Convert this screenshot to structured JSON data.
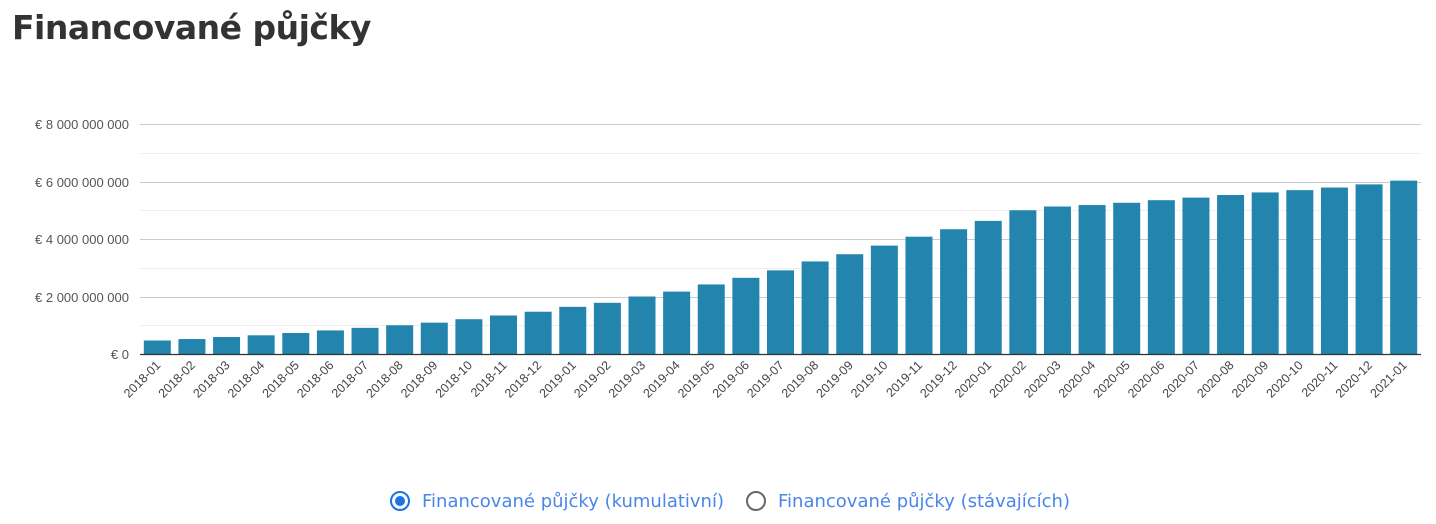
{
  "page": {
    "title": "Financované půjčky"
  },
  "colors": {
    "bar": "#2385ad",
    "grid": "#cccccc",
    "minor_grid": "#eeeeee",
    "axis": "#333333",
    "accent": "#1a73e8"
  },
  "legend": {
    "options": [
      {
        "label": "Financované půjčky (kumulativní)",
        "selected": true
      },
      {
        "label": "Financované půjčky (stávajících)",
        "selected": false
      }
    ]
  },
  "chart_data": {
    "type": "bar",
    "title": "",
    "xlabel": "",
    "ylabel": "",
    "ylim": [
      0,
      8000000000
    ],
    "yticks": [
      0,
      2000000000,
      4000000000,
      6000000000,
      8000000000
    ],
    "ytick_labels": [
      "€ 0",
      "€ 2 000 000 000",
      "€ 4 000 000 000",
      "€ 6 000 000 000",
      "€ 8 000 000 000"
    ],
    "grid": true,
    "categories": [
      "2018-01",
      "2018-02",
      "2018-03",
      "2018-04",
      "2018-05",
      "2018-06",
      "2018-07",
      "2018-08",
      "2018-09",
      "2018-10",
      "2018-11",
      "2018-12",
      "2019-01",
      "2019-02",
      "2019-03",
      "2019-04",
      "2019-05",
      "2019-06",
      "2019-07",
      "2019-08",
      "2019-09",
      "2019-10",
      "2019-11",
      "2019-12",
      "2020-01",
      "2020-02",
      "2020-03",
      "2020-04",
      "2020-05",
      "2020-06",
      "2020-07",
      "2020-08",
      "2020-09",
      "2020-10",
      "2020-11",
      "2020-12",
      "2021-01"
    ],
    "values": [
      470000000,
      520000000,
      590000000,
      650000000,
      730000000,
      820000000,
      910000000,
      1000000000,
      1090000000,
      1210000000,
      1340000000,
      1470000000,
      1640000000,
      1780000000,
      2000000000,
      2170000000,
      2420000000,
      2650000000,
      2910000000,
      3220000000,
      3470000000,
      3770000000,
      4080000000,
      4340000000,
      4630000000,
      5000000000,
      5130000000,
      5180000000,
      5260000000,
      5350000000,
      5440000000,
      5530000000,
      5620000000,
      5700000000,
      5790000000,
      5900000000,
      6030000000
    ]
  }
}
